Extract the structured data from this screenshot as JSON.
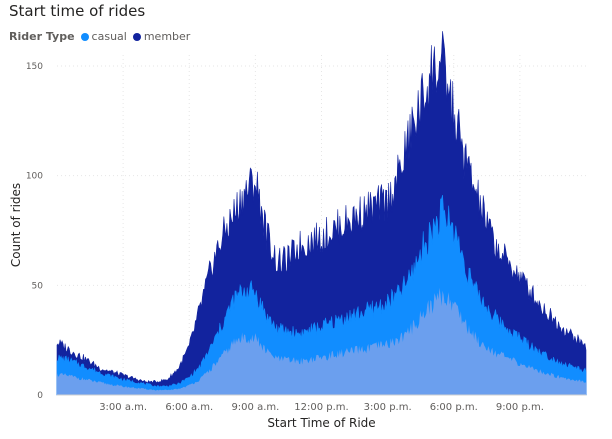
{
  "chart_data": {
    "type": "area",
    "title": "Start time of rides",
    "legend_title": "Rider Type",
    "legend_position": "top-left",
    "xlabel": "Start Time of Ride",
    "ylabel": "Count of rides",
    "ylim": [
      0,
      155
    ],
    "yticks": [
      "0",
      "50",
      "100",
      "150"
    ],
    "x_unit": "hours",
    "xlim": [
      0,
      24
    ],
    "xticks": [
      {
        "x": 3,
        "label": "3:00 a.m."
      },
      {
        "x": 6,
        "label": "6:00 a.m."
      },
      {
        "x": 9,
        "label": "9:00 a.m."
      },
      {
        "x": 12,
        "label": "12:00 p.m."
      },
      {
        "x": 15,
        "label": "3:00 p.m."
      },
      {
        "x": 18,
        "label": "6:00 p.m."
      },
      {
        "x": 21,
        "label": "9:00 p.m."
      }
    ],
    "grid": true,
    "series": [
      {
        "name": "casual",
        "color": "#118DFF",
        "x": [
          0,
          0.5,
          1,
          1.5,
          2,
          3,
          4,
          4.5,
          5,
          5.5,
          6,
          6.5,
          7,
          7.5,
          8,
          8.5,
          9,
          9.5,
          10,
          10.5,
          11,
          12,
          13,
          14,
          15,
          15.5,
          16,
          16.5,
          17,
          17.5,
          18,
          18.5,
          19,
          19.5,
          20,
          21,
          22,
          23,
          24
        ],
        "values": [
          17,
          16,
          14,
          12,
          10,
          7,
          5,
          4,
          4,
          5,
          8,
          13,
          22,
          32,
          43,
          48,
          47,
          36,
          30,
          29,
          28,
          31,
          35,
          38,
          42,
          46,
          53,
          65,
          75,
          83,
          76,
          60,
          47,
          40,
          34,
          26,
          19,
          14,
          11
        ]
      },
      {
        "name": "member",
        "color": "#12239E",
        "x": [
          0,
          0.5,
          1,
          1.5,
          2,
          3,
          4,
          4.5,
          5,
          5.5,
          6,
          6.5,
          7,
          7.5,
          8,
          8.5,
          9,
          9.5,
          10,
          10.5,
          11,
          12,
          13,
          14,
          15,
          15.5,
          16,
          16.5,
          17,
          17.5,
          18,
          18.5,
          19,
          19.5,
          20,
          21,
          22,
          23,
          24
        ],
        "values": [
          24,
          21,
          18,
          15,
          12,
          9,
          6,
          6,
          7,
          12,
          22,
          40,
          58,
          72,
          82,
          92,
          98,
          74,
          60,
          62,
          68,
          72,
          78,
          84,
          88,
          100,
          118,
          132,
          148,
          150,
          128,
          108,
          92,
          78,
          66,
          54,
          40,
          30,
          22
        ]
      }
    ]
  }
}
